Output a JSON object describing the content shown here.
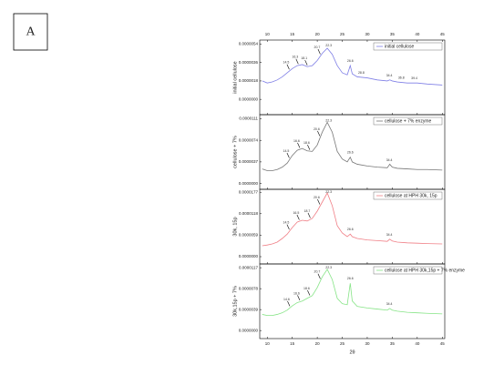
{
  "figure_label": "A",
  "chart_data": [
    {
      "type": "line",
      "ylabel": "initial cellulose",
      "x": [
        9,
        10,
        11,
        12,
        13,
        14,
        15,
        16,
        17,
        18,
        19,
        20,
        21,
        22,
        23,
        24,
        25,
        26,
        26.6,
        27,
        28,
        30,
        32,
        34,
        34.5,
        35,
        36,
        38,
        40,
        42,
        45
      ],
      "series": [
        {
          "name": "initial cellulose",
          "color": "#7f7fe6",
          "values": [
            1.8e-06,
            1.6e-06,
            1.7e-06,
            1.9e-06,
            2.2e-06,
            2.6e-06,
            3e-06,
            3.3e-06,
            3.4e-06,
            3.2e-06,
            3.3e-06,
            3.8e-06,
            4.5e-06,
            5e-06,
            4.4e-06,
            3.3e-06,
            2.6e-06,
            2.4e-06,
            3.3e-06,
            2.5e-06,
            2.2e-06,
            2.1e-06,
            1.9e-06,
            1.8e-06,
            1.9e-06,
            1.8e-06,
            1.7e-06,
            1.6e-06,
            1.6e-06,
            1.5e-06,
            1.4e-06
          ]
        }
      ],
      "peaks": [
        14.5,
        16.3,
        18.1,
        20.7,
        22.3,
        26.6,
        28.8,
        34.4,
        36.8,
        39.4
      ],
      "xlim": [
        8.5,
        45.5
      ],
      "xticks": [
        10,
        15,
        20,
        25,
        30,
        35,
        40,
        45
      ],
      "ylim": [
        -1.5e-06,
        5.8e-06
      ],
      "yticks": [
        {
          "value": 0,
          "label": "0.0000000"
        },
        {
          "value": 1.8e-06,
          "label": "0.0000018"
        },
        {
          "value": 3.6e-06,
          "label": "0.0000036"
        },
        {
          "value": 5.4e-06,
          "label": "0.0000054"
        }
      ]
    },
    {
      "type": "line",
      "ylabel": "cellulose + 7%",
      "x": [
        9,
        10,
        11,
        12,
        13,
        14,
        15,
        16,
        17,
        18,
        19,
        20,
        21,
        22,
        23,
        24,
        25,
        26,
        26.6,
        27,
        28,
        30,
        32,
        34,
        34.5,
        35,
        36,
        38,
        40,
        42,
        45
      ],
      "series": [
        {
          "name": "cellulose + 7% enzyme",
          "color": "#777777",
          "values": [
            2.5e-06,
            2.2e-06,
            2.2e-06,
            2.4e-06,
            2.8e-06,
            3.5e-06,
            4.8e-06,
            5.7e-06,
            6e-06,
            5.6e-06,
            5.5e-06,
            6.6e-06,
            8.8e-06,
            1.05e-05,
            8.8e-06,
            5.5e-06,
            4.2e-06,
            3.7e-06,
            4.5e-06,
            3.7e-06,
            3.3e-06,
            3e-06,
            2.8e-06,
            2.7e-06,
            3.3e-06,
            2.8e-06,
            2.6e-06,
            2.5e-06,
            2.4e-06,
            2.4e-06,
            2.3e-06
          ]
        }
      ],
      "peaks": [
        14.5,
        16.6,
        18.6,
        20.6,
        22.3,
        26.6,
        34.4
      ],
      "xlim": [
        8.5,
        45.5
      ],
      "xticks": [
        10,
        15,
        20,
        25,
        30,
        35,
        40,
        45
      ],
      "ylim": [
        -1e-06,
        1.18e-05
      ],
      "yticks": [
        {
          "value": 0,
          "label": "0.0000000"
        },
        {
          "value": 3.7e-06,
          "label": "0.0000037"
        },
        {
          "value": 7.4e-06,
          "label": "0.0000074"
        },
        {
          "value": 1.11e-05,
          "label": "0.0000111"
        }
      ]
    },
    {
      "type": "line",
      "ylabel": "30k, 15p",
      "x": [
        9,
        10,
        11,
        12,
        13,
        14,
        15,
        16,
        17,
        18,
        19,
        20,
        21,
        22,
        23,
        24,
        25,
        26,
        26.6,
        27,
        28,
        30,
        32,
        34,
        34.5,
        35,
        36,
        38,
        40,
        42,
        45
      ],
      "series": [
        {
          "name": "cellulose at HPH 30k, 15p",
          "color": "#f07f86",
          "values": [
            3e-06,
            3.2e-06,
            3.5e-06,
            4e-06,
            5e-06,
            6.2e-06,
            8e-06,
            9.5e-06,
            1e-05,
            9.8e-06,
            1.05e-05,
            1.25e-05,
            1.5e-05,
            1.75e-05,
            1.4e-05,
            8.5e-06,
            6.5e-06,
            5.5e-06,
            6.2e-06,
            5.5e-06,
            5e-06,
            4.6e-06,
            4.4e-06,
            4.2e-06,
            4.8e-06,
            4.3e-06,
            4e-06,
            3.8e-06,
            3.7e-06,
            3.6e-06,
            3.5e-06
          ]
        }
      ],
      "peaks": [
        14.5,
        16.5,
        18.7,
        20.6,
        22.3,
        26.6,
        34.4
      ],
      "xlim": [
        8.5,
        45.5
      ],
      "xticks": [
        10,
        15,
        20,
        25,
        30,
        35,
        40,
        45
      ],
      "ylim": [
        -2e-06,
        1.85e-05
      ],
      "yticks": [
        {
          "value": 0,
          "label": "0.0000000"
        },
        {
          "value": 5.9e-06,
          "label": "0.0000059"
        },
        {
          "value": 1.18e-05,
          "label": "0.0000118"
        },
        {
          "value": 1.77e-05,
          "label": "0.0000177"
        }
      ]
    },
    {
      "type": "line",
      "ylabel": "30k,15p + 7%",
      "xlabel": "2θ",
      "x": [
        9,
        10,
        11,
        12,
        13,
        14,
        15,
        16,
        17,
        18,
        19,
        20,
        21,
        22,
        23,
        24,
        25,
        26,
        26.6,
        27,
        28,
        30,
        32,
        34,
        34.5,
        35,
        36,
        38,
        40,
        42,
        45
      ],
      "series": [
        {
          "name": "cellulose at HPH 30k,15p + 7% enzyme",
          "color": "#86e486",
          "values": [
            3e-06,
            2.8e-06,
            2.8e-06,
            3e-06,
            3.3e-06,
            3.8e-06,
            4.6e-06,
            5.2e-06,
            5.5e-06,
            6e-06,
            6.5e-06,
            8e-06,
            1e-05,
            1.14e-05,
            9.5e-06,
            6e-06,
            5e-06,
            4.8e-06,
            8.8e-06,
            5.5e-06,
            4.5e-06,
            4.2e-06,
            4e-06,
            3.8e-06,
            4.1e-06,
            3.8e-06,
            3.6e-06,
            3.4e-06,
            3.3e-06,
            3.2e-06,
            3.1e-06
          ]
        }
      ],
      "peaks": [
        14.6,
        16.6,
        18.6,
        20.7,
        22.3,
        26.6,
        34.4
      ],
      "xlim": [
        8.5,
        45.5
      ],
      "xticks": [
        10,
        15,
        20,
        25,
        30,
        35,
        40,
        45
      ],
      "ylim": [
        -1.5e-06,
        1.24e-05
      ],
      "yticks": [
        {
          "value": 0,
          "label": "0.0000000"
        },
        {
          "value": 3.9e-06,
          "label": "0.0000039"
        },
        {
          "value": 7.8e-06,
          "label": "0.0000078"
        },
        {
          "value": 1.17e-05,
          "label": "0.0000117"
        }
      ]
    }
  ]
}
